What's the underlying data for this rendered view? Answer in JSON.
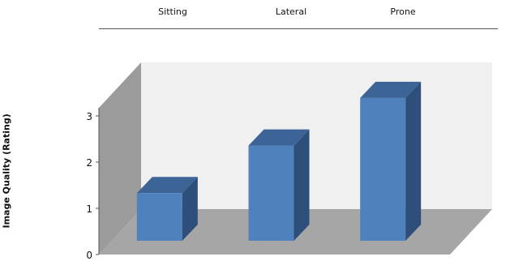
{
  "chart_data": {
    "type": "bar",
    "categories": [
      "Sitting",
      "Lateral",
      "Prone"
    ],
    "values": [
      1.0,
      2.0,
      3.0
    ],
    "title": "",
    "xlabel": "",
    "ylabel": "Image Quality (Rating)",
    "ylim": [
      0,
      3
    ],
    "yticks": [
      "0",
      "1",
      "2",
      "3"
    ],
    "style": "3d-column",
    "legend": "none",
    "grid": false,
    "colors": {
      "bar_front": "#4f81bd",
      "bar_top": "#3d6496",
      "bar_side": "#2e4f7a",
      "back_wall": "#f0f0f0",
      "side_wall": "#9b9b9b",
      "floor": "#a6a6a6"
    }
  }
}
